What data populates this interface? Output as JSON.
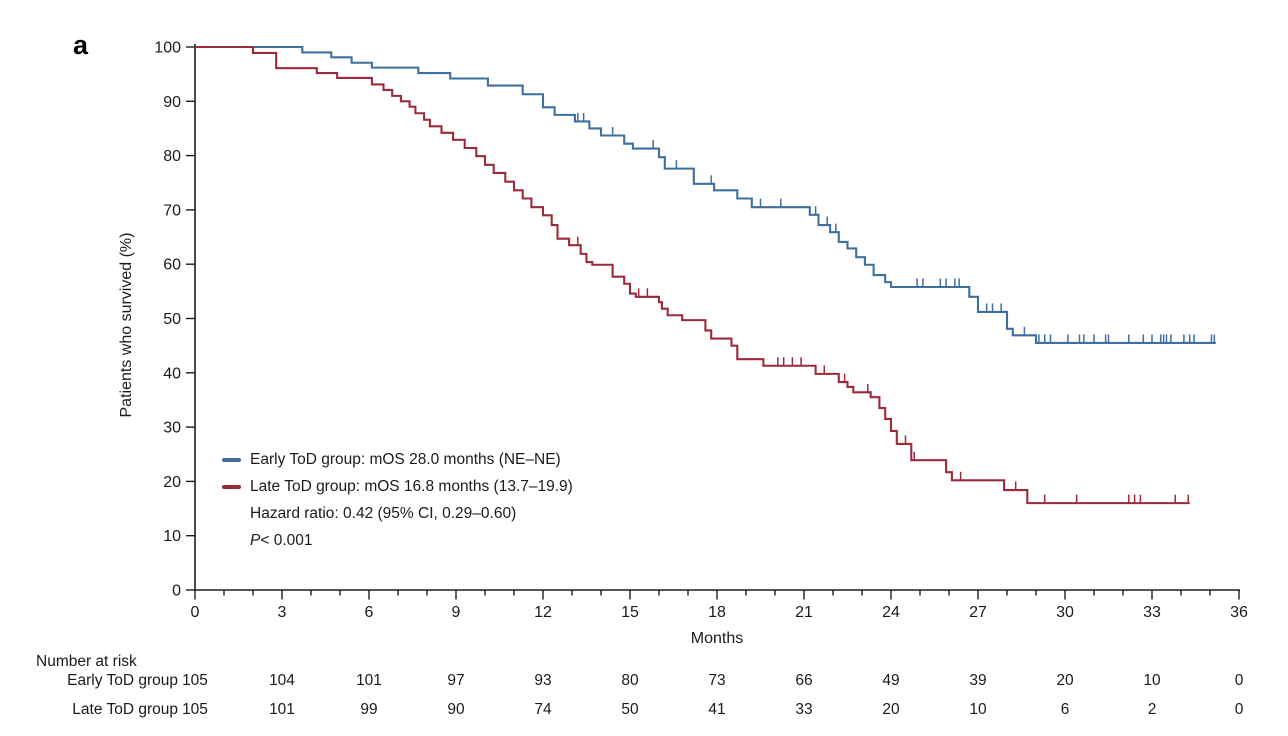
{
  "panel_label": "a",
  "colors": {
    "early_blue": "#3e6f9d",
    "late_red": "#9b2b3b",
    "axis": "#1d1d1d",
    "text": "#1b1b1b"
  },
  "legend": {
    "early": "Early ToD group: mOS 28.0 months (NE–NE)",
    "late": "Late ToD group: mOS 16.8 months (13.7–19.9)",
    "hazard": "Hazard ratio: 0.42 (95% CI, 0.29–0.60)",
    "p_label": "P",
    "p_value": " < 0.001"
  },
  "chart_data": {
    "type": "line",
    "subtype": "kaplan-meier-step",
    "title": "",
    "xlabel": "Months",
    "ylabel": "Patients who survived (%)",
    "xlim": [
      0,
      36
    ],
    "ylim": [
      0,
      100
    ],
    "xticks": [
      0,
      3,
      6,
      9,
      12,
      15,
      18,
      21,
      24,
      27,
      30,
      33,
      36
    ],
    "yticks": [
      0,
      10,
      20,
      30,
      40,
      50,
      60,
      70,
      80,
      90,
      100
    ],
    "grid": false,
    "legend_position": "inside-lower-left",
    "series": [
      {
        "name": "Early ToD group",
        "color": "#3e6f9d",
        "median_os": "28.0 months (NE–NE)",
        "start": [
          0,
          100
        ],
        "end_month": 35.2,
        "steps": [
          [
            3.7,
            99.0
          ],
          [
            4.7,
            98.1
          ],
          [
            5.4,
            97.1
          ],
          [
            6.1,
            96.2
          ],
          [
            7.7,
            95.2
          ],
          [
            8.8,
            94.2
          ],
          [
            10.1,
            92.9
          ],
          [
            11.3,
            91.3
          ],
          [
            12.0,
            88.9
          ],
          [
            12.4,
            87.5
          ],
          [
            13.1,
            86.3
          ],
          [
            13.6,
            85.0
          ],
          [
            14.0,
            83.7
          ],
          [
            14.8,
            82.2
          ],
          [
            15.1,
            81.3
          ],
          [
            16.0,
            79.7
          ],
          [
            16.2,
            77.6
          ],
          [
            17.2,
            74.8
          ],
          [
            17.9,
            73.6
          ],
          [
            18.7,
            72.1
          ],
          [
            19.2,
            70.5
          ],
          [
            21.2,
            69.1
          ],
          [
            21.5,
            67.2
          ],
          [
            21.9,
            65.9
          ],
          [
            22.2,
            64.1
          ],
          [
            22.5,
            62.9
          ],
          [
            22.8,
            61.3
          ],
          [
            23.1,
            59.9
          ],
          [
            23.4,
            58.0
          ],
          [
            23.8,
            56.7
          ],
          [
            24.0,
            55.8
          ],
          [
            26.7,
            54.0
          ],
          [
            27.0,
            51.2
          ],
          [
            28.0,
            48.1
          ],
          [
            28.2,
            46.9
          ],
          [
            29.0,
            45.5
          ]
        ],
        "censor_months": [
          13.2,
          13.4,
          14.4,
          15.8,
          16.6,
          17.8,
          19.5,
          20.2,
          21.4,
          21.8,
          22.1,
          24.9,
          25.1,
          25.7,
          25.9,
          26.2,
          26.35,
          27.3,
          27.5,
          27.8,
          28.6,
          29.1,
          29.3,
          29.5,
          30.1,
          30.5,
          30.65,
          31.0,
          31.4,
          31.5,
          32.2,
          32.7,
          33.0,
          33.3,
          33.4,
          33.5,
          33.65,
          34.1,
          34.3,
          34.45,
          35.05,
          35.15
        ]
      },
      {
        "name": "Late ToD group",
        "color": "#9b2b3b",
        "median_os": "16.8 months (13.7–19.9)",
        "start": [
          0,
          100
        ],
        "end_month": 34.3,
        "steps": [
          [
            2.0,
            98.9
          ],
          [
            2.8,
            96.1
          ],
          [
            4.2,
            95.2
          ],
          [
            4.9,
            94.3
          ],
          [
            6.1,
            93.1
          ],
          [
            6.5,
            92.1
          ],
          [
            6.8,
            91.0
          ],
          [
            7.1,
            90.0
          ],
          [
            7.4,
            89.0
          ],
          [
            7.6,
            87.8
          ],
          [
            7.9,
            86.6
          ],
          [
            8.1,
            85.4
          ],
          [
            8.5,
            84.2
          ],
          [
            8.9,
            82.9
          ],
          [
            9.3,
            81.4
          ],
          [
            9.7,
            79.9
          ],
          [
            10.0,
            78.3
          ],
          [
            10.3,
            76.8
          ],
          [
            10.7,
            75.2
          ],
          [
            11.0,
            73.6
          ],
          [
            11.3,
            72.1
          ],
          [
            11.6,
            70.5
          ],
          [
            12.0,
            69.0
          ],
          [
            12.3,
            67.2
          ],
          [
            12.5,
            64.7
          ],
          [
            12.9,
            63.5
          ],
          [
            13.3,
            61.9
          ],
          [
            13.5,
            60.4
          ],
          [
            13.7,
            59.9
          ],
          [
            14.4,
            57.7
          ],
          [
            14.8,
            56.4
          ],
          [
            15.0,
            54.6
          ],
          [
            15.2,
            54.0
          ],
          [
            16.0,
            53.0
          ],
          [
            16.1,
            51.8
          ],
          [
            16.3,
            50.6
          ],
          [
            16.8,
            49.7
          ],
          [
            17.6,
            47.8
          ],
          [
            17.8,
            46.3
          ],
          [
            18.5,
            45.0
          ],
          [
            18.7,
            42.5
          ],
          [
            19.6,
            41.3
          ],
          [
            21.4,
            39.8
          ],
          [
            22.2,
            38.3
          ],
          [
            22.5,
            37.4
          ],
          [
            22.7,
            36.4
          ],
          [
            23.3,
            35.5
          ],
          [
            23.6,
            33.5
          ],
          [
            23.8,
            31.5
          ],
          [
            24.0,
            29.3
          ],
          [
            24.2,
            26.9
          ],
          [
            24.7,
            23.9
          ],
          [
            25.9,
            21.7
          ],
          [
            26.1,
            20.2
          ],
          [
            27.9,
            18.4
          ],
          [
            28.7,
            16.0
          ]
        ],
        "censor_months": [
          13.2,
          15.3,
          15.6,
          20.1,
          20.3,
          20.6,
          20.9,
          21.7,
          22.4,
          23.2,
          24.5,
          24.8,
          26.4,
          28.3,
          29.3,
          30.4,
          32.2,
          32.4,
          32.6,
          33.8,
          34.25
        ]
      }
    ],
    "risk_table": {
      "title": "Number at risk",
      "months": [
        0,
        3,
        6,
        9,
        12,
        15,
        18,
        21,
        24,
        27,
        30,
        33,
        36
      ],
      "rows": [
        {
          "label": "Early ToD group",
          "values": [
            105,
            104,
            101,
            97,
            93,
            80,
            73,
            66,
            49,
            39,
            20,
            10,
            0
          ]
        },
        {
          "label": "Late ToD group",
          "values": [
            105,
            101,
            99,
            90,
            74,
            50,
            41,
            33,
            20,
            10,
            6,
            2,
            0
          ]
        }
      ]
    }
  }
}
